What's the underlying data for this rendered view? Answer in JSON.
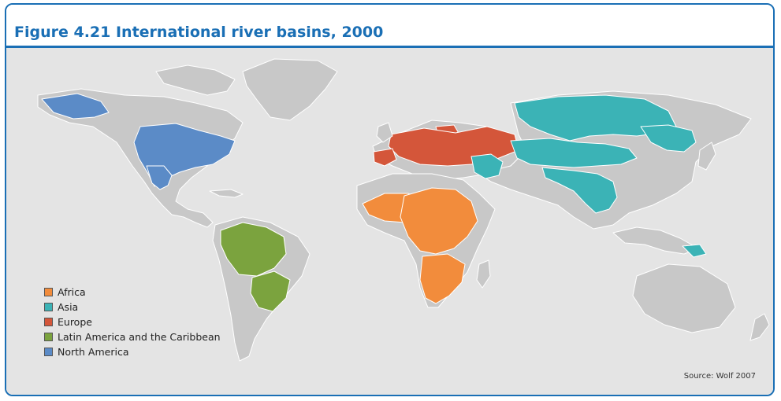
{
  "figure": {
    "title": "Figure 4.21 International river basins, 2000",
    "source": "Source: Wolf 2007"
  },
  "colors": {
    "frame": "#1a6fb5",
    "ocean": "#e4e4e4",
    "land": "#c8c8c8",
    "africa": "#f28c3c",
    "asia": "#3bb3b6",
    "europe": "#d4563a",
    "latin_america": "#7ba33e",
    "north_america": "#5b8bc7"
  },
  "legend": [
    {
      "label": "Africa",
      "color": "#f28c3c"
    },
    {
      "label": "Asia",
      "color": "#3bb3b6"
    },
    {
      "label": "Europe",
      "color": "#d4563a"
    },
    {
      "label": "Latin America and the Caribbean",
      "color": "#7ba33e"
    },
    {
      "label": "North America",
      "color": "#5b8bc7"
    }
  ]
}
